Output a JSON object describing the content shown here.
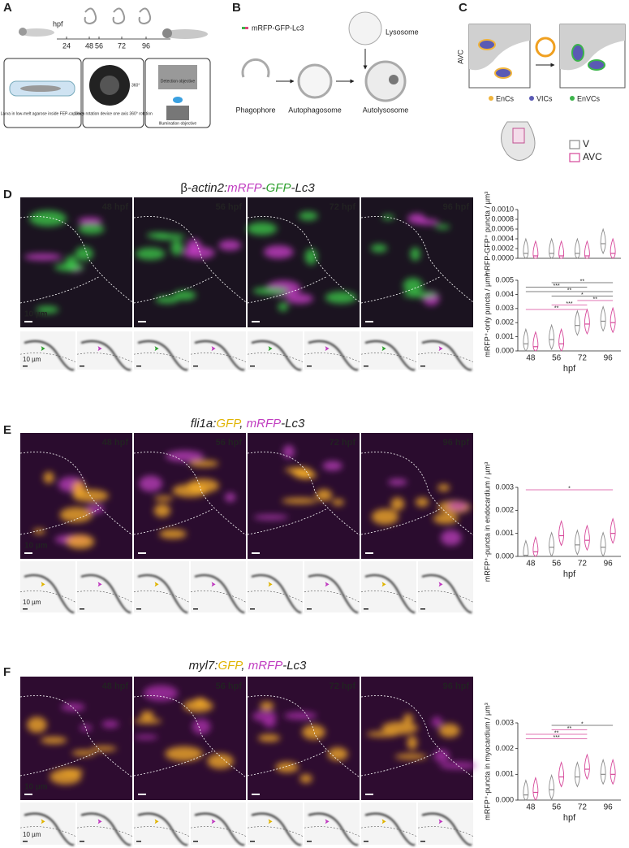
{
  "panels": {
    "A": {
      "letter": "A",
      "hpf": "hpf",
      "timepoints": [
        "24",
        "48",
        "56",
        "72",
        "96"
      ],
      "captions": [
        "Larva in low-melt agarose inside FEP-capillary",
        "Leica rotation device one axis 360° rotation",
        "360°",
        "Detection objective",
        "Illumination objective"
      ]
    },
    "B": {
      "letter": "B",
      "probe": "mRFP-GFP-Lc3",
      "lysosome": "Lysosome",
      "stages": [
        "Phagophore",
        "Autophagosome",
        "Autolysosome"
      ]
    },
    "C": {
      "letter": "C",
      "region": "AVC",
      "cells": [
        {
          "name": "EnCs",
          "color": "#f0b43c"
        },
        {
          "name": "VICs",
          "color": "#5a5ab4"
        },
        {
          "name": "EnVCs",
          "color": "#3cb44b"
        }
      ]
    },
    "D": {
      "letter": "D",
      "title": [
        {
          "text": "β-",
          "italic": false,
          "color": "#222222"
        },
        {
          "text": "actin2:",
          "italic": true,
          "color": "#222222"
        },
        {
          "text": "mRFP",
          "italic": true,
          "color": "#c03cc0"
        },
        {
          "text": "-",
          "italic": true,
          "color": "#222222"
        },
        {
          "text": "GFP",
          "italic": true,
          "color": "#2ea02e"
        },
        {
          "text": "-Lc3",
          "italic": true,
          "color": "#222222"
        }
      ]
    },
    "E": {
      "letter": "E",
      "title": [
        {
          "text": "fli1a:",
          "italic": true,
          "color": "#222222"
        },
        {
          "text": "GFP",
          "italic": true,
          "color": "#e0b400"
        },
        {
          "text": ", ",
          "italic": true,
          "color": "#222222"
        },
        {
          "text": "mRFP",
          "italic": true,
          "color": "#c03cc0"
        },
        {
          "text": "-Lc3",
          "italic": true,
          "color": "#222222"
        }
      ]
    },
    "F": {
      "letter": "F",
      "title": [
        {
          "text": "myl7:",
          "italic": true,
          "color": "#222222"
        },
        {
          "text": "GFP",
          "italic": true,
          "color": "#e0b400"
        },
        {
          "text": ", ",
          "italic": true,
          "color": "#222222"
        },
        {
          "text": "mRFP",
          "italic": true,
          "color": "#c03cc0"
        },
        {
          "text": "-Lc3",
          "italic": true,
          "color": "#222222"
        }
      ]
    }
  },
  "timepoint_labels": [
    "48 hpf",
    "56 hpf",
    "72 hpf",
    "96 hpf"
  ],
  "scale_bar": "10 µm",
  "chart_data": [
    {
      "type": "violin",
      "ylabel": "mRFP-GFP⁺ puncta / µm³",
      "categories": [
        null,
        null,
        null,
        null
      ],
      "series": [
        {
          "name": "V",
          "color": "#8c8c8c",
          "values": [
            0.0001,
            0.0001,
            0.0001,
            0.0003
          ]
        },
        {
          "name": "AVC",
          "color": "#d6479a",
          "values": [
            5e-05,
            5e-05,
            5e-05,
            0.0001
          ]
        }
      ],
      "ylim": [
        0,
        0.001
      ],
      "yticks": [
        {
          "value": 0,
          "label": "0.0000"
        },
        {
          "value": 0.0002,
          "label": "0.0002"
        },
        {
          "value": 0.0004,
          "label": "0.0004"
        },
        {
          "value": 0.0006,
          "label": "0.0006"
        },
        {
          "value": 0.0008,
          "label": "0.0008"
        },
        {
          "value": 0.001,
          "label": "0.0010"
        }
      ]
    },
    {
      "type": "violin",
      "ylabel": "mRFP⁺-only puncta / µm³",
      "xlabel": "hpf",
      "categories": [
        "48",
        "56",
        "72",
        "96"
      ],
      "series": [
        {
          "color": "#8c8c8c",
          "values": [
            0.0005,
            0.0008,
            0.0018,
            0.0021
          ]
        },
        {
          "color": "#d6479a",
          "values": [
            0.0003,
            0.0005,
            0.0019,
            0.002
          ]
        }
      ],
      "ylim": [
        0,
        0.005
      ],
      "yticks": [
        {
          "value": 0,
          "label": "0.000"
        },
        {
          "value": 0.001,
          "label": "0.001"
        },
        {
          "value": 0.002,
          "label": "0.002"
        },
        {
          "value": 0.003,
          "label": "0.003"
        },
        {
          "value": 0.004,
          "label": "0.004"
        },
        {
          "value": 0.005,
          "label": "0.005"
        }
      ],
      "annotations": [
        "**",
        "***",
        "**",
        "*",
        "**",
        "***",
        "**"
      ]
    },
    {
      "type": "violin",
      "ylabel": "mRFP⁺-puncta in endocardium / µm³",
      "xlabel": "hpf",
      "categories": [
        "48",
        "56",
        "72",
        "96"
      ],
      "series": [
        {
          "color": "#8c8c8c",
          "values": [
            5e-05,
            0.0004,
            0.0005,
            0.0004
          ]
        },
        {
          "color": "#d6479a",
          "values": [
            0.0002,
            0.0009,
            0.0007,
            0.001
          ]
        }
      ],
      "ylim": [
        0,
        0.003
      ],
      "yticks": [
        {
          "value": 0,
          "label": "0.000"
        },
        {
          "value": 0.001,
          "label": "0.001"
        },
        {
          "value": 0.002,
          "label": "0.002"
        },
        {
          "value": 0.003,
          "label": "0.003"
        }
      ],
      "annotations": [
        "*"
      ]
    },
    {
      "type": "violin",
      "ylabel": "mRFP⁺-puncta in myocardium / µm³",
      "xlabel": "hpf",
      "categories": [
        "48",
        "56",
        "72",
        "96"
      ],
      "series": [
        {
          "color": "#8c8c8c",
          "values": [
            0.0002,
            0.0004,
            0.0009,
            0.001
          ]
        },
        {
          "color": "#d6479a",
          "values": [
            0.0003,
            0.0009,
            0.0012,
            0.001
          ]
        }
      ],
      "ylim": [
        0,
        0.003
      ],
      "yticks": [
        {
          "value": 0,
          "label": "0.000"
        },
        {
          "value": 0.001,
          "label": "0.001"
        },
        {
          "value": 0.002,
          "label": "0.002"
        },
        {
          "value": 0.003,
          "label": "0.003"
        }
      ],
      "annotations": [
        "*",
        "**",
        "**",
        "***"
      ]
    }
  ]
}
